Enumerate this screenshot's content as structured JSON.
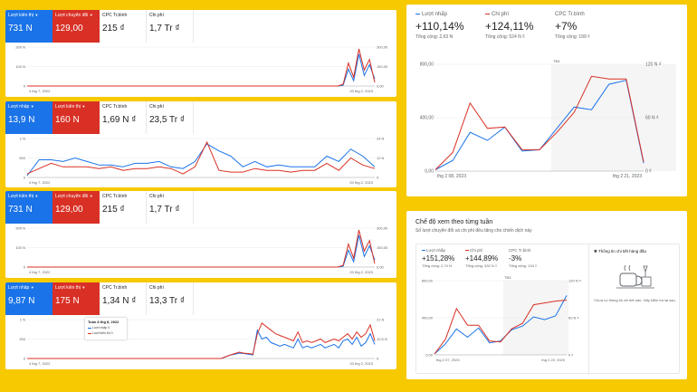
{
  "colors": {
    "blue": "#1a73e8",
    "red": "#d93025",
    "grey": "#5f6368"
  },
  "panels": [
    {
      "metrics": [
        {
          "label": "Lượt kiến thị",
          "value": "731 N",
          "style": "blue"
        },
        {
          "label": "Lượt chuyển đổi",
          "value": "129,00",
          "style": "red"
        },
        {
          "label": "CPC Tr.bình",
          "value": "215 ₫",
          "style": "plain"
        },
        {
          "label": "Chi phí",
          "value": "1,7 Tr ₫",
          "style": "plain"
        }
      ],
      "chart_data": {
        "type": "line",
        "y_left_ticks": [
          "200 N",
          "100 N",
          "0"
        ],
        "y_right_ticks": [
          "300,00",
          "150,00",
          "0,00"
        ],
        "x_start": "4 thg 7, 2022",
        "x_end": "20 thg 2, 2023",
        "series": [
          {
            "color": "blue",
            "values": [
              0,
              0,
              0,
              0,
              0,
              0,
              0,
              0,
              0,
              0,
              0,
              0,
              0,
              0,
              0,
              0,
              0,
              0,
              0,
              0,
              0,
              0,
              0,
              0,
              0,
              0,
              0,
              0,
              0,
              0,
              0,
              0,
              0,
              0,
              0,
              0,
              0,
              0,
              0,
              0,
              0,
              0,
              0,
              0,
              0,
              0,
              0,
              0,
              0,
              0,
              0,
              0,
              0,
              0,
              0,
              0,
              0,
              0,
              0,
              0,
              5,
              95,
              30,
              180,
              60,
              120,
              40
            ]
          },
          {
            "color": "red",
            "values": [
              0,
              0,
              0,
              0,
              0,
              0,
              0,
              0,
              0,
              0,
              0,
              0,
              0,
              0,
              0,
              0,
              0,
              0,
              0,
              0,
              0,
              0,
              0,
              0,
              0,
              0,
              0,
              0,
              0,
              0,
              0,
              0,
              0,
              0,
              0,
              0,
              0,
              0,
              0,
              0,
              0,
              0,
              0,
              0,
              0,
              0,
              0,
              0,
              0,
              0,
              0,
              0,
              0,
              0,
              0,
              0,
              0,
              0,
              0,
              0,
              10,
              130,
              50,
              210,
              90,
              150,
              20
            ]
          }
        ],
        "y_max": 220
      }
    },
    {
      "metrics": [
        {
          "label": "Lượt nhấp",
          "value": "13,9 N",
          "style": "blue"
        },
        {
          "label": "Lượt kiến thị",
          "value": "160 N",
          "style": "red"
        },
        {
          "label": "CPC Tr.bình",
          "value": "1,69 N ₫",
          "style": "plain"
        },
        {
          "label": "Chi phí",
          "value": "23,5 Tr ₫",
          "style": "plain"
        }
      ],
      "chart_data": {
        "type": "line",
        "y_left_ticks": [
          "1 N",
          "500",
          "0"
        ],
        "y_right_ticks": [
          "24 N",
          "12 N",
          "0"
        ],
        "x_start": "4 thg 7, 2022",
        "x_end": "20 thg 2, 2023",
        "series": [
          {
            "color": "blue",
            "values": [
              5,
              50,
              50,
              45,
              55,
              45,
              35,
              35,
              30,
              40,
              40,
              45,
              30,
              25,
              45,
              95,
              75,
              60,
              30,
              45,
              30,
              35,
              30,
              30,
              30,
              60,
              45,
              80,
              60,
              30
            ]
          },
          {
            "color": "red",
            "values": [
              10,
              25,
              40,
              30,
              30,
              30,
              25,
              30,
              20,
              25,
              25,
              30,
              25,
              10,
              30,
              100,
              20,
              15,
              15,
              25,
              20,
              20,
              15,
              20,
              20,
              40,
              20,
              55,
              35,
              25
            ]
          }
        ],
        "y_max": 110
      }
    },
    {
      "metrics": [
        {
          "label": "Lượt kiến thị",
          "value": "731 N",
          "style": "blue"
        },
        {
          "label": "Lượt chuyển đổi",
          "value": "129,00",
          "style": "red"
        },
        {
          "label": "CPC Tr.bình",
          "value": "215 ₫",
          "style": "plain"
        },
        {
          "label": "Chi phí",
          "value": "1,7 Tr ₫",
          "style": "plain"
        }
      ],
      "chart_data": {
        "type": "line",
        "y_left_ticks": [
          "200 N",
          "100 N",
          "0"
        ],
        "y_right_ticks": [
          "300,00",
          "150,00",
          "0,00"
        ],
        "x_start": "4 thg 7, 2022",
        "x_end": "20 thg 2, 2023",
        "series": [
          {
            "color": "blue",
            "values": [
              0,
              0,
              0,
              0,
              0,
              0,
              0,
              0,
              0,
              0,
              0,
              0,
              0,
              0,
              0,
              0,
              0,
              0,
              0,
              0,
              0,
              0,
              0,
              0,
              0,
              0,
              0,
              0,
              0,
              0,
              0,
              0,
              0,
              0,
              0,
              0,
              0,
              0,
              0,
              0,
              0,
              0,
              0,
              0,
              0,
              0,
              0,
              0,
              0,
              0,
              0,
              0,
              0,
              0,
              0,
              0,
              0,
              0,
              0,
              0,
              5,
              95,
              30,
              180,
              60,
              120,
              40
            ]
          },
          {
            "color": "red",
            "values": [
              0,
              0,
              0,
              0,
              0,
              0,
              0,
              0,
              0,
              0,
              0,
              0,
              0,
              0,
              0,
              0,
              0,
              0,
              0,
              0,
              0,
              0,
              0,
              0,
              0,
              0,
              0,
              0,
              0,
              0,
              0,
              0,
              0,
              0,
              0,
              0,
              0,
              0,
              0,
              0,
              0,
              0,
              0,
              0,
              0,
              0,
              0,
              0,
              0,
              0,
              0,
              0,
              0,
              0,
              0,
              0,
              0,
              0,
              0,
              0,
              10,
              130,
              50,
              210,
              90,
              150,
              20
            ]
          }
        ],
        "y_max": 220
      }
    },
    {
      "metrics": [
        {
          "label": "Lượt nhấp",
          "value": "9,87 N",
          "style": "blue"
        },
        {
          "label": "Lượt kiến thị",
          "value": "175 N",
          "style": "red"
        },
        {
          "label": "CPC Tr.bình",
          "value": "1,34 N ₫",
          "style": "plain"
        },
        {
          "label": "Chi phí",
          "value": "13,3 Tr ₫",
          "style": "plain"
        }
      ],
      "chart_data": {
        "type": "line",
        "y_left_ticks": [
          "1 N",
          "200",
          "0"
        ],
        "y_right_ticks": [
          "21 N",
          "10,5 N",
          "0"
        ],
        "x_start": "4 thg 7, 2022",
        "x_end": "20 thg 2, 2023",
        "series": [
          {
            "color": "blue",
            "values": [
              0,
              0,
              0,
              0,
              0,
              0,
              0,
              0,
              0,
              0,
              0,
              0,
              0,
              0,
              0,
              0,
              0,
              0,
              0,
              0,
              0,
              0,
              0,
              0,
              0,
              0,
              0,
              0,
              0,
              0,
              0,
              0,
              0,
              0,
              0,
              0,
              0,
              0,
              0,
              0,
              0,
              0,
              0,
              0,
              5,
              10,
              12,
              15,
              14,
              12,
              10,
              80,
              55,
              60,
              45,
              40,
              35,
              40,
              35,
              30,
              55,
              30,
              35,
              30,
              35,
              40,
              30,
              35,
              40,
              30,
              50,
              55,
              40,
              60,
              35,
              45,
              70,
              40
            ]
          },
          {
            "color": "red",
            "values": [
              0,
              0,
              0,
              0,
              0,
              0,
              0,
              0,
              0,
              0,
              0,
              0,
              0,
              0,
              0,
              0,
              0,
              0,
              0,
              0,
              0,
              0,
              0,
              0,
              0,
              0,
              0,
              0,
              0,
              0,
              0,
              0,
              0,
              0,
              0,
              0,
              0,
              0,
              0,
              0,
              0,
              0,
              0,
              0,
              5,
              10,
              14,
              18,
              15,
              14,
              12,
              70,
              100,
              90,
              80,
              70,
              65,
              60,
              55,
              50,
              75,
              45,
              50,
              45,
              50,
              55,
              45,
              50,
              55,
              50,
              60,
              70,
              55,
              75,
              60,
              70,
              95,
              50
            ]
          }
        ],
        "y_max": 110
      },
      "tooltip": {
        "title": "Tuần 8 thg 8, 2022",
        "line1": "Lượt nhấp",
        "value1": "0",
        "line2": "Lượt kiến thị",
        "value2": "0"
      }
    }
  ],
  "summary": {
    "metrics": [
      {
        "label": "Lượt nhấp",
        "value": "+110,14%",
        "sub": "Tổng cộng: 2,63 N",
        "color": "blue"
      },
      {
        "label": "Chi phí",
        "value": "+124,11%",
        "sub": "Tổng cộng: 524 N ₫",
        "color": "red"
      },
      {
        "label": "CPC Tr.bình",
        "value": "+7%",
        "sub": "Tổng cộng: 199 ₫",
        "color": ""
      }
    ],
    "chart_data": {
      "type": "line",
      "y_left_ticks": [
        "800,00",
        "400,00",
        "0,00"
      ],
      "y_right_ticks": [
        "120 N ₫",
        "60 N ₫",
        "0 ₫"
      ],
      "x_start": "thg 2 08, 2023",
      "x_end": "thg 2 21, 2023",
      "marker": "TB3",
      "series": [
        {
          "color": "blue",
          "values": [
            10,
            80,
            290,
            230,
            330,
            150,
            160,
            320,
            480,
            460,
            650,
            680,
            60
          ]
        },
        {
          "color": "red",
          "values": [
            10,
            140,
            510,
            320,
            330,
            160,
            160,
            290,
            440,
            710,
            690,
            690,
            70
          ]
        }
      ],
      "y_max": 800
    }
  },
  "weekly": {
    "title": "Chế độ xem theo từng tuần",
    "subtitle": "Số lượt chuyển đổi và chi phí đều tăng cho chiến dịch này",
    "metrics": [
      {
        "label": "Lượt nhấp",
        "value": "+151,28%",
        "sub": "Tổng cộng: 2,74 N",
        "color": "blue"
      },
      {
        "label": "Chi phí",
        "value": "+144,89%",
        "sub": "Tổng cộng: 332 N ₫",
        "color": "red"
      },
      {
        "label": "CPC Tr.bình",
        "value": "-3%",
        "sub": "Tổng cộng: 134 ₫",
        "color": ""
      }
    ],
    "chart_data": {
      "type": "line",
      "y_left_ticks": [
        "800,00",
        "400,00",
        "0,00"
      ],
      "y_right_ticks": [
        "120 N ₫",
        "60 N ₫",
        "0 ₫"
      ],
      "x_start": "thg 2 07, 2023",
      "x_end": "thg 2 20, 2023",
      "marker": "TB3",
      "series": [
        {
          "color": "blue",
          "values": [
            10,
            120,
            280,
            190,
            290,
            130,
            150,
            270,
            310,
            410,
            380,
            420,
            640
          ]
        },
        {
          "color": "red",
          "values": [
            10,
            170,
            500,
            320,
            320,
            150,
            140,
            280,
            340,
            540,
            560,
            580,
            590
          ]
        }
      ],
      "y_max": 800
    },
    "insight_title": "Thông tin chi tiết hàng đầu",
    "insight_body": "Chưa có thông tin chi tiết nào. Hãy kiểm tra lại sau."
  }
}
